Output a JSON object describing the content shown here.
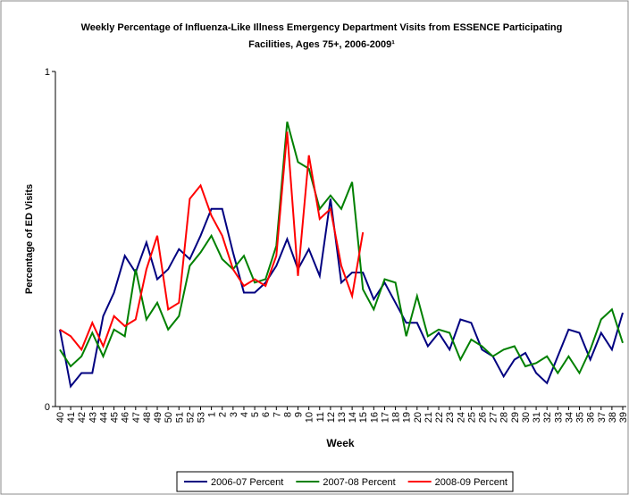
{
  "chart_data": {
    "type": "line",
    "title": "Weekly Percentage of Influenza-Like Illness Emergency Department Visits from ESSENCE Participating Facilities, Ages 75+, 2006-2009¹",
    "x_label": "Week",
    "y_label": "Percentage of ED Visits",
    "categories": [
      "40",
      "41",
      "42",
      "43",
      "44",
      "45",
      "46",
      "47",
      "48",
      "49",
      "50",
      "51",
      "52",
      "53",
      "1",
      "2",
      "3",
      "4",
      "5",
      "6",
      "7",
      "8",
      "9",
      "10",
      "11",
      "12",
      "13",
      "14",
      "15",
      "16",
      "17",
      "18",
      "19",
      "20",
      "21",
      "22",
      "23",
      "24",
      "25",
      "26",
      "27",
      "28",
      "29",
      "30",
      "31",
      "32",
      "33",
      "34",
      "35",
      "36",
      "37",
      "38",
      "39"
    ],
    "ylim": [
      0,
      1
    ],
    "yticks": [
      0,
      1
    ],
    "grid": false,
    "legend": "bottom",
    "series": [
      {
        "name": "2006-07 Percent",
        "color": "#000080",
        "values": [
          0.23,
          0.06,
          0.1,
          0.1,
          0.27,
          0.34,
          0.45,
          0.4,
          0.49,
          0.38,
          0.41,
          0.47,
          0.44,
          0.51,
          0.59,
          0.59,
          0.46,
          0.34,
          0.34,
          0.37,
          0.42,
          0.5,
          0.41,
          0.47,
          0.39,
          0.62,
          0.37,
          0.4,
          0.4,
          0.32,
          0.37,
          0.31,
          0.25,
          0.25,
          0.18,
          0.22,
          0.17,
          0.26,
          0.25,
          0.17,
          0.15,
          0.09,
          0.14,
          0.16,
          0.1,
          0.07,
          0.15,
          0.23,
          0.22,
          0.14,
          0.22,
          0.17,
          0.28
        ]
      },
      {
        "name": "2007-08 Percent",
        "color": "#008000",
        "values": [
          0.17,
          0.12,
          0.15,
          0.22,
          0.15,
          0.23,
          0.21,
          0.41,
          0.26,
          0.31,
          0.23,
          0.27,
          0.42,
          0.46,
          0.51,
          0.44,
          0.41,
          0.45,
          0.37,
          0.38,
          0.48,
          0.85,
          0.73,
          0.71,
          0.59,
          0.63,
          0.59,
          0.67,
          0.35,
          0.29,
          0.38,
          0.37,
          0.21,
          0.33,
          0.21,
          0.23,
          0.22,
          0.14,
          0.2,
          0.18,
          0.15,
          0.17,
          0.18,
          0.12,
          0.13,
          0.15,
          0.1,
          0.15,
          0.1,
          0.17,
          0.26,
          0.29,
          0.19
        ]
      },
      {
        "name": "2008-09 Percent",
        "color": "#ff0000",
        "values": [
          0.23,
          0.21,
          0.17,
          0.25,
          0.18,
          0.27,
          0.24,
          0.26,
          0.41,
          0.51,
          0.29,
          0.31,
          0.62,
          0.66,
          0.57,
          0.51,
          0.41,
          0.36,
          0.38,
          0.36,
          0.45,
          0.82,
          0.39,
          0.75,
          0.56,
          0.59,
          0.42,
          0.33,
          0.52,
          null,
          null,
          null,
          null,
          null,
          null,
          null,
          null,
          null,
          null,
          null,
          null,
          null,
          null,
          null,
          null,
          null,
          null,
          null,
          null,
          null,
          null,
          null,
          null
        ]
      }
    ]
  }
}
